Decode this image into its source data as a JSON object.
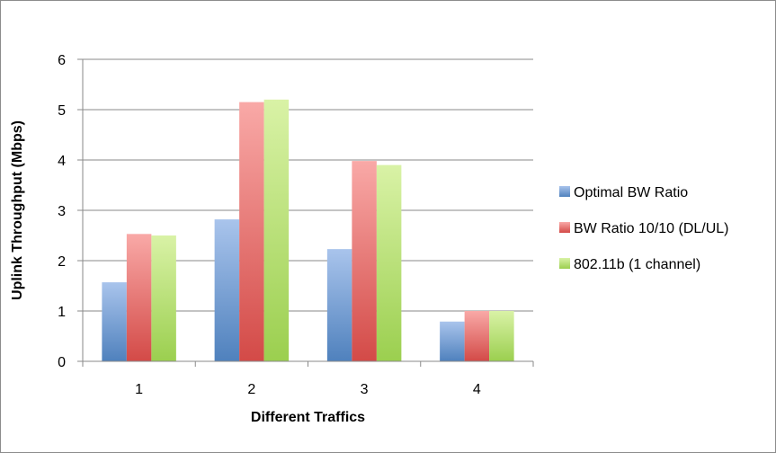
{
  "chart_data": {
    "type": "bar",
    "title": "",
    "xlabel": "Different Traffics",
    "ylabel": "Uplink Throughput (Mbps)",
    "categories": [
      "1",
      "2",
      "3",
      "4"
    ],
    "ylim": [
      0,
      6
    ],
    "yticks": [
      0,
      1,
      2,
      3,
      4,
      5,
      6
    ],
    "grid": true,
    "legend_position": "right",
    "series": [
      {
        "name": "Optimal BW Ratio",
        "values": [
          1.57,
          2.82,
          2.23,
          0.79
        ],
        "color": "#4f81bd",
        "color_light": "#a9c4ec"
      },
      {
        "name": "BW Ratio 10/10 (DL/UL)",
        "values": [
          2.53,
          5.15,
          3.98,
          1.0
        ],
        "color": "#d34a47",
        "color_light": "#f9a9a7"
      },
      {
        "name": "802.11b (1 channel)",
        "values": [
          2.5,
          5.2,
          3.9,
          1.0
        ],
        "color": "#9bcf4f",
        "color_light": "#d9f2a6"
      }
    ]
  }
}
